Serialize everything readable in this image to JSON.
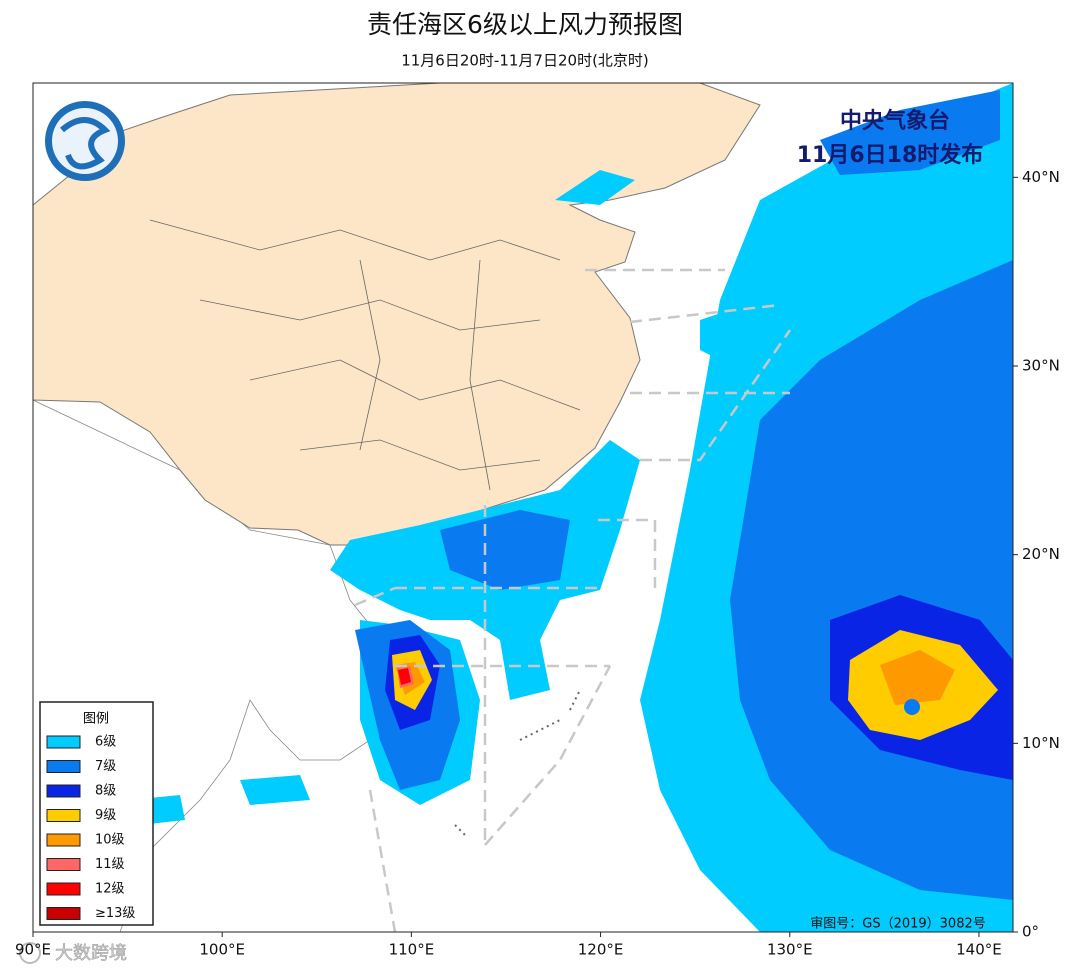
{
  "header": {
    "title": "责任海区6级以上风力预报图",
    "subtitle": "11月6日20时-11月7日20时(北京时)"
  },
  "stamp": {
    "agency": "中央气象台",
    "issued": "11月6日18时发布"
  },
  "map": {
    "xlim": [
      90,
      141.8
    ],
    "ylim": [
      0,
      45
    ],
    "xticks": [
      {
        "value": 90,
        "label": "90°E"
      },
      {
        "value": 100,
        "label": "100°E"
      },
      {
        "value": 110,
        "label": "110°E"
      },
      {
        "value": 120,
        "label": "120°E"
      },
      {
        "value": 130,
        "label": "130°E"
      },
      {
        "value": 140,
        "label": "140°E"
      }
    ],
    "yticks": [
      {
        "value": 0,
        "label": "0°"
      },
      {
        "value": 10,
        "label": "10°N"
      },
      {
        "value": 20,
        "label": "20°N"
      },
      {
        "value": 30,
        "label": "30°N"
      },
      {
        "value": 40,
        "label": "40°N"
      }
    ]
  },
  "legend": {
    "title": "图例",
    "items": [
      {
        "label": "6级",
        "color": "#00ccff"
      },
      {
        "label": "7级",
        "color": "#0a7af0"
      },
      {
        "label": "8级",
        "color": "#0a24e6"
      },
      {
        "label": "9级",
        "color": "#ffcc00"
      },
      {
        "label": "10级",
        "color": "#ff9900"
      },
      {
        "label": "11级",
        "color": "#ff6666"
      },
      {
        "label": "12级",
        "color": "#ff0000"
      },
      {
        "label": "≥13级",
        "color": "#c80000"
      }
    ]
  },
  "footer": {
    "approval": "审图号：GS（2019）3082号",
    "watermark": "大数跨境"
  }
}
